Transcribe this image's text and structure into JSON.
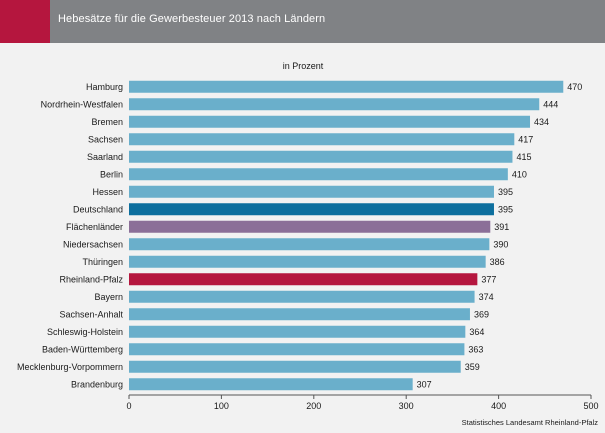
{
  "header": {
    "title": "Hebesätze für die Gewerbesteuer 2013 nach Ländern",
    "accent_color": "#b5163e",
    "bar_color": "#808285"
  },
  "chart_data": {
    "type": "bar",
    "orientation": "horizontal",
    "subtitle": "in Prozent",
    "source": "Statistisches Landesamt Rheinland-Pfalz",
    "categories": [
      "Hamburg",
      "Nordrhein-Westfalen",
      "Bremen",
      "Sachsen",
      "Saarland",
      "Berlin",
      "Hessen",
      "Deutschland",
      "Flächenländer",
      "Niedersachsen",
      "Thüringen",
      "Rheinland-Pfalz",
      "Bayern",
      "Sachsen-Anhalt",
      "Schleswig-Holstein",
      "Baden-Württemberg",
      "Mecklenburg-Vorpommern",
      "Brandenburg"
    ],
    "values": [
      470,
      444,
      434,
      417,
      415,
      410,
      395,
      395,
      391,
      390,
      386,
      377,
      374,
      369,
      364,
      363,
      359,
      307
    ],
    "xlim": [
      0,
      500
    ],
    "xticks": [
      0,
      100,
      200,
      300,
      400,
      500
    ],
    "grid": false,
    "default_color": "#6aafcb",
    "highlights": {
      "Deutschland": "#0d6f9e",
      "Flächenländer": "#8b6f98",
      "Rheinland-Pfalz": "#b5163e"
    }
  }
}
